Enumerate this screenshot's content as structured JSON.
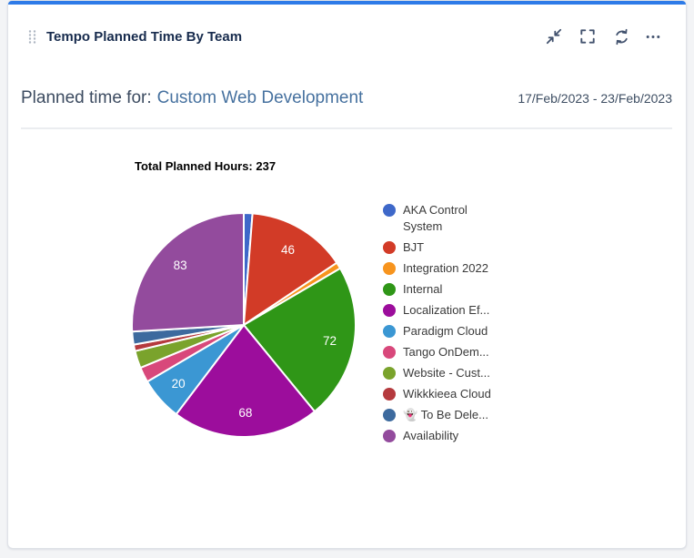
{
  "widget": {
    "title": "Tempo Planned Time By Team"
  },
  "theme": {
    "accent_color": "#2E7BE8",
    "page_background": "#F3F4F6",
    "card_background": "#FFFFFF",
    "header_text_color": "#172B4D",
    "icon_color": "#42526E",
    "team_name_color": "#46719F"
  },
  "subheader": {
    "prefix": "Planned time for:",
    "team": "Custom Web Development",
    "date_range": "17/Feb/2023 - 23/Feb/2023"
  },
  "chart_data": {
    "type": "pie",
    "title": "Total Planned Hours: 237",
    "total_planned_hours": 237,
    "start_angle_deg": 0,
    "direction": "clockwise",
    "legend_position": "right",
    "slice_label_min_value": 20,
    "series": [
      {
        "label": "AKA Control System",
        "value": 4,
        "color": "#3E68C9",
        "value_shown": false
      },
      {
        "label": "BJT",
        "value": 46,
        "color": "#D23B27",
        "value_shown": true
      },
      {
        "label": "Integration 2022",
        "value": 3,
        "color": "#F7941E",
        "value_shown": false
      },
      {
        "label": "Internal",
        "value": 72,
        "color": "#2F9617",
        "value_shown": true
      },
      {
        "label": "Localization Ef...",
        "value": 68,
        "color": "#9C0D9C",
        "value_shown": true
      },
      {
        "label": "Paradigm Cloud",
        "value": 20,
        "color": "#3B97D3",
        "value_shown": true
      },
      {
        "label": "Tango OnDem...",
        "value": 7,
        "color": "#D8487B",
        "value_shown": false
      },
      {
        "label": "Website - Cust...",
        "value": 8,
        "color": "#7AA32C",
        "value_shown": false
      },
      {
        "label": "Wikkkieea Cloud",
        "value": 3,
        "color": "#B53A3E",
        "value_shown": false
      },
      {
        "label": "👻 To Be Dele...",
        "value": 6,
        "color": "#3D6A9E",
        "value_shown": false
      },
      {
        "label": "Availability",
        "value": 83,
        "color": "#934B9D",
        "value_shown": true
      }
    ]
  }
}
